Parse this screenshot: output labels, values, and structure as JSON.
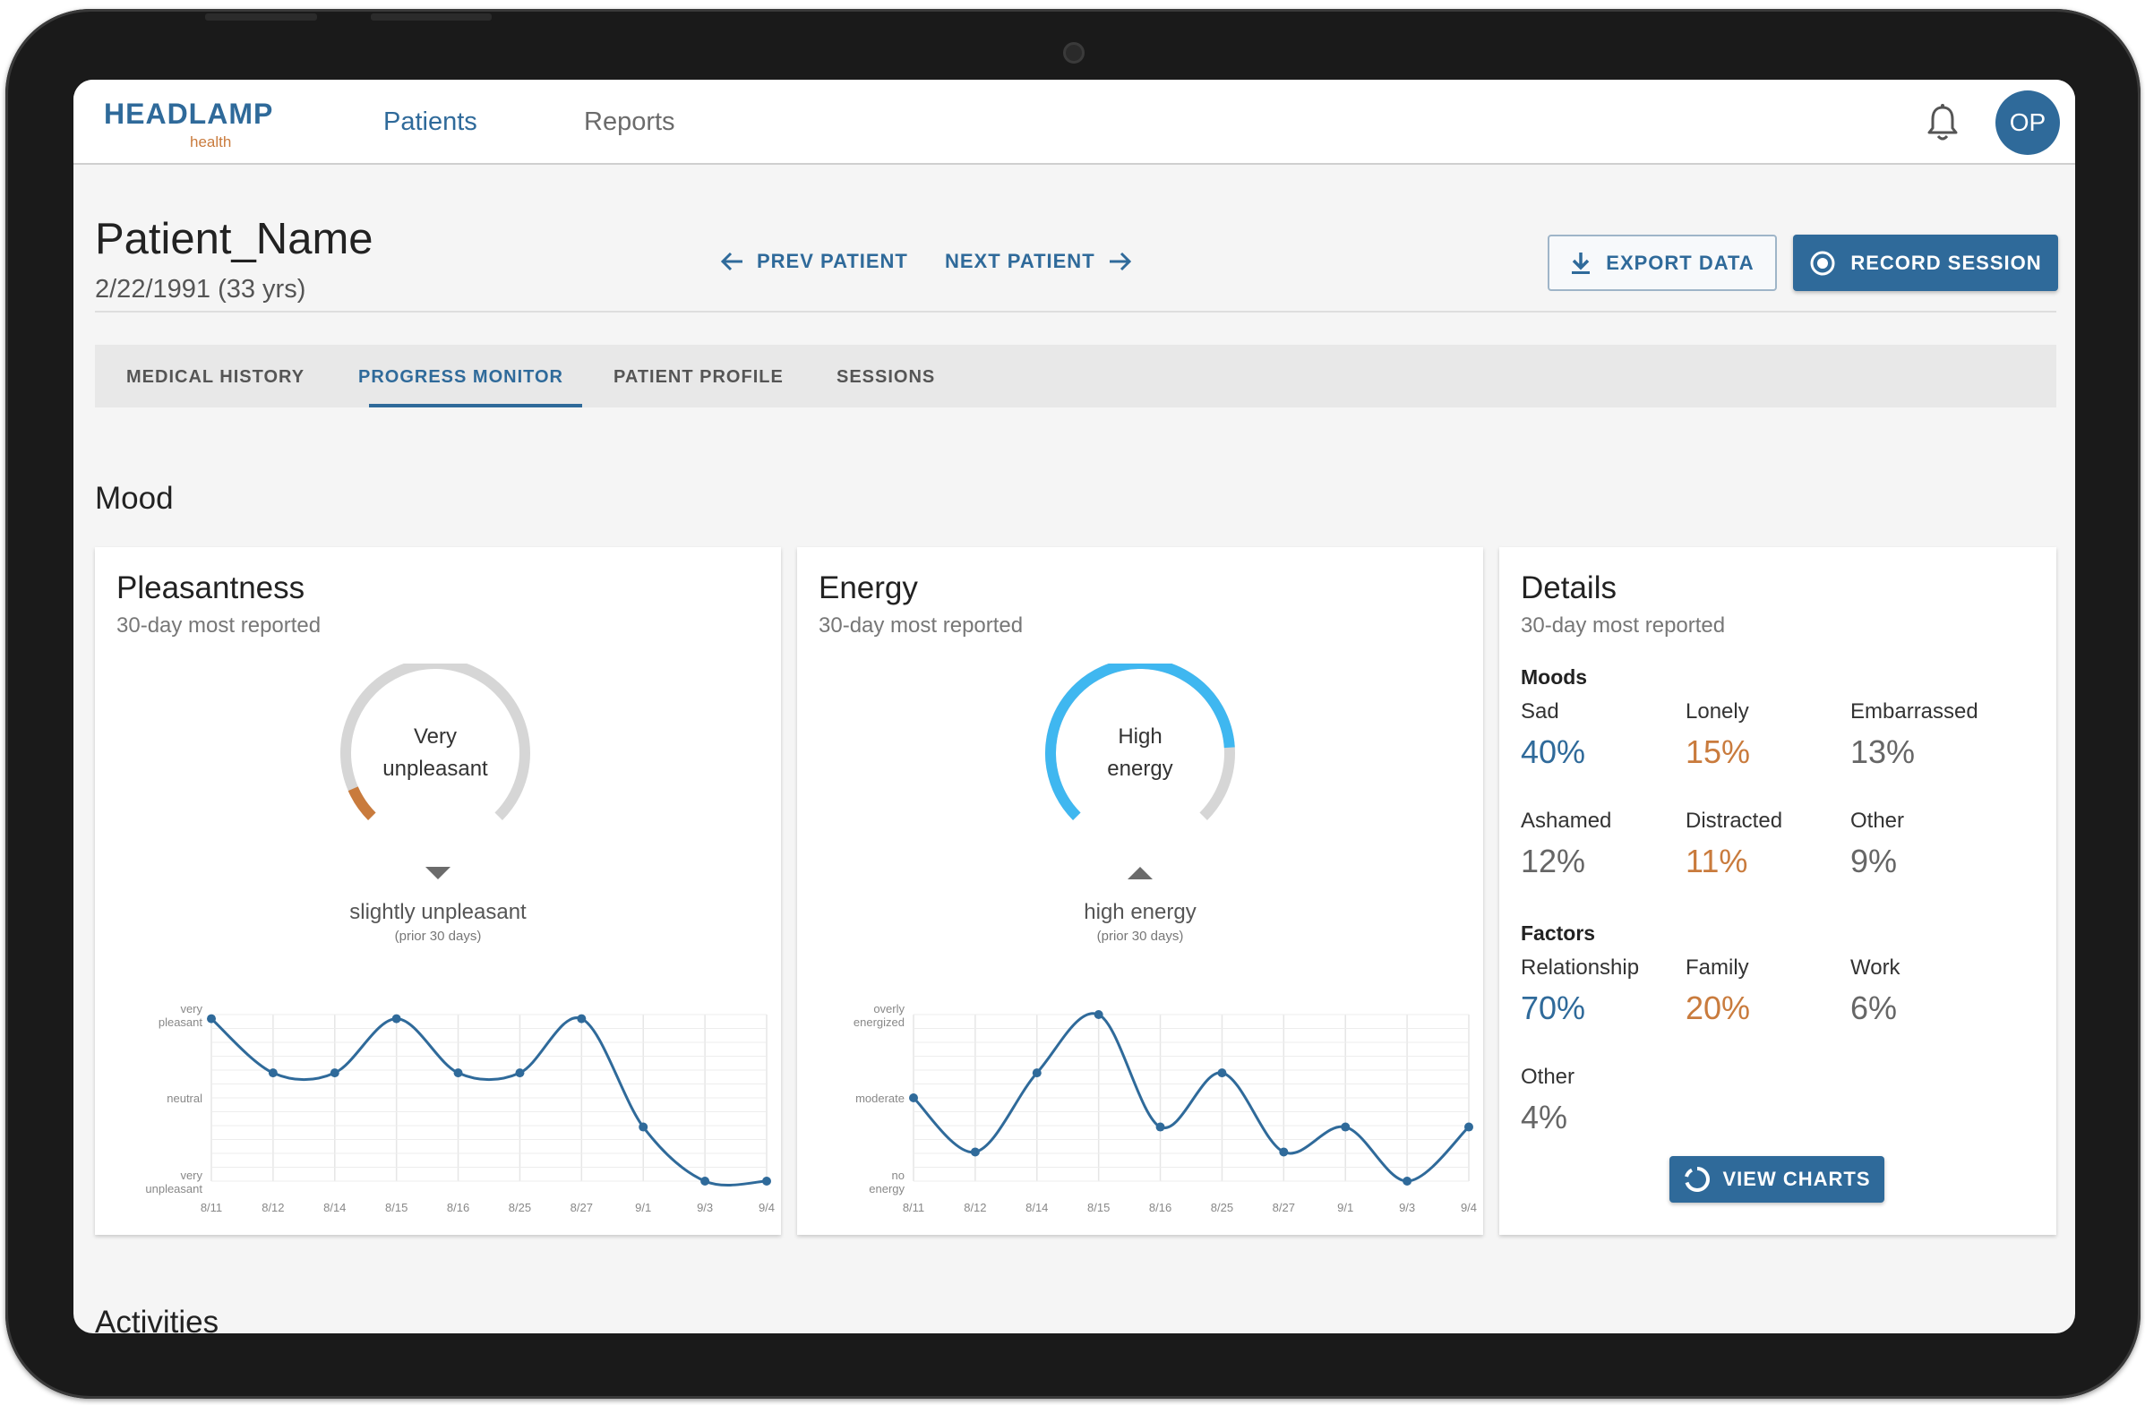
{
  "app": {
    "logo_main": "HEADLAMP",
    "logo_sub": "health",
    "nav": [
      {
        "label": "Patients"
      },
      {
        "label": "Reports"
      }
    ],
    "avatar_initials": "OP",
    "accent": "#2f6a9a",
    "orange": "#c97b3d",
    "cyan": "#3fb7f0"
  },
  "patient": {
    "name": "Patient_Name",
    "dob": "2/22/1991 (33 yrs)",
    "prev_label": "PREV PATIENT",
    "next_label": "NEXT PATIENT",
    "export_label": "EXPORT DATA",
    "record_label": "RECORD SESSION"
  },
  "tabs": [
    {
      "label": "MEDICAL HISTORY",
      "active": false
    },
    {
      "label": "PROGRESS MONITOR",
      "active": true
    },
    {
      "label": "PATIENT PROFILE",
      "active": false
    },
    {
      "label": "SESSIONS",
      "active": false
    }
  ],
  "section_mood": "Mood",
  "section_activities": "Activities",
  "pleasantness": {
    "title": "Pleasantness",
    "subtitle": "30-day most reported",
    "gauge_line1": "Very",
    "gauge_line2": "unpleasant",
    "gauge_level": 0.08,
    "trend": "down",
    "summary": "slightly unpleasant",
    "summary_small": "(prior 30 days)"
  },
  "energy": {
    "title": "Energy",
    "subtitle": "30-day most reported",
    "gauge_line1": "High",
    "gauge_line2": "energy",
    "gauge_level": 0.82,
    "trend": "up",
    "summary": "high energy",
    "summary_small": "(prior 30 days)"
  },
  "details": {
    "title": "Details",
    "subtitle": "30-day most reported",
    "moods_head": "Moods",
    "moods": [
      {
        "label": "Sad",
        "value": "40%",
        "color": "#2f6a9a"
      },
      {
        "label": "Lonely",
        "value": "15%",
        "color": "#c97b3d"
      },
      {
        "label": "Embarrassed",
        "value": "13%",
        "color": "#666666"
      },
      {
        "label": "Ashamed",
        "value": "12%",
        "color": "#666666"
      },
      {
        "label": "Distracted",
        "value": "11%",
        "color": "#c97b3d"
      },
      {
        "label": "Other",
        "value": "9%",
        "color": "#666666"
      }
    ],
    "factors_head": "Factors",
    "factors": [
      {
        "label": "Relationship",
        "value": "70%",
        "color": "#2f6a9a"
      },
      {
        "label": "Family",
        "value": "20%",
        "color": "#c97b3d"
      },
      {
        "label": "Work",
        "value": "6%",
        "color": "#666666"
      },
      {
        "label": "Other",
        "value": "4%",
        "color": "#666666"
      }
    ],
    "view_charts_label": "VIEW CHARTS"
  },
  "chart_data": [
    {
      "type": "line",
      "x": [
        "8/11",
        "8/12",
        "8/14",
        "8/15",
        "8/16",
        "8/25",
        "8/27",
        "9/1",
        "9/3",
        "9/4"
      ],
      "y_ticks": [
        "very pleasant",
        "neutral",
        "very unpleasant"
      ],
      "ylim": [
        -1,
        1
      ],
      "series": [
        {
          "values": [
            0.95,
            0.3,
            0.3,
            0.95,
            0.3,
            0.3,
            0.95,
            -0.35,
            -1,
            -1
          ]
        }
      ]
    },
    {
      "type": "line",
      "x": [
        "8/11",
        "8/12",
        "8/14",
        "8/15",
        "8/16",
        "8/25",
        "8/27",
        "9/1",
        "9/3",
        "9/4"
      ],
      "y_ticks": [
        "overly energized",
        "moderate",
        "no energy"
      ],
      "ylim": [
        -1,
        1
      ],
      "series": [
        {
          "values": [
            0,
            -0.65,
            0.3,
            1,
            -0.35,
            0.3,
            -0.65,
            -0.35,
            -1,
            -0.35
          ]
        }
      ]
    }
  ]
}
